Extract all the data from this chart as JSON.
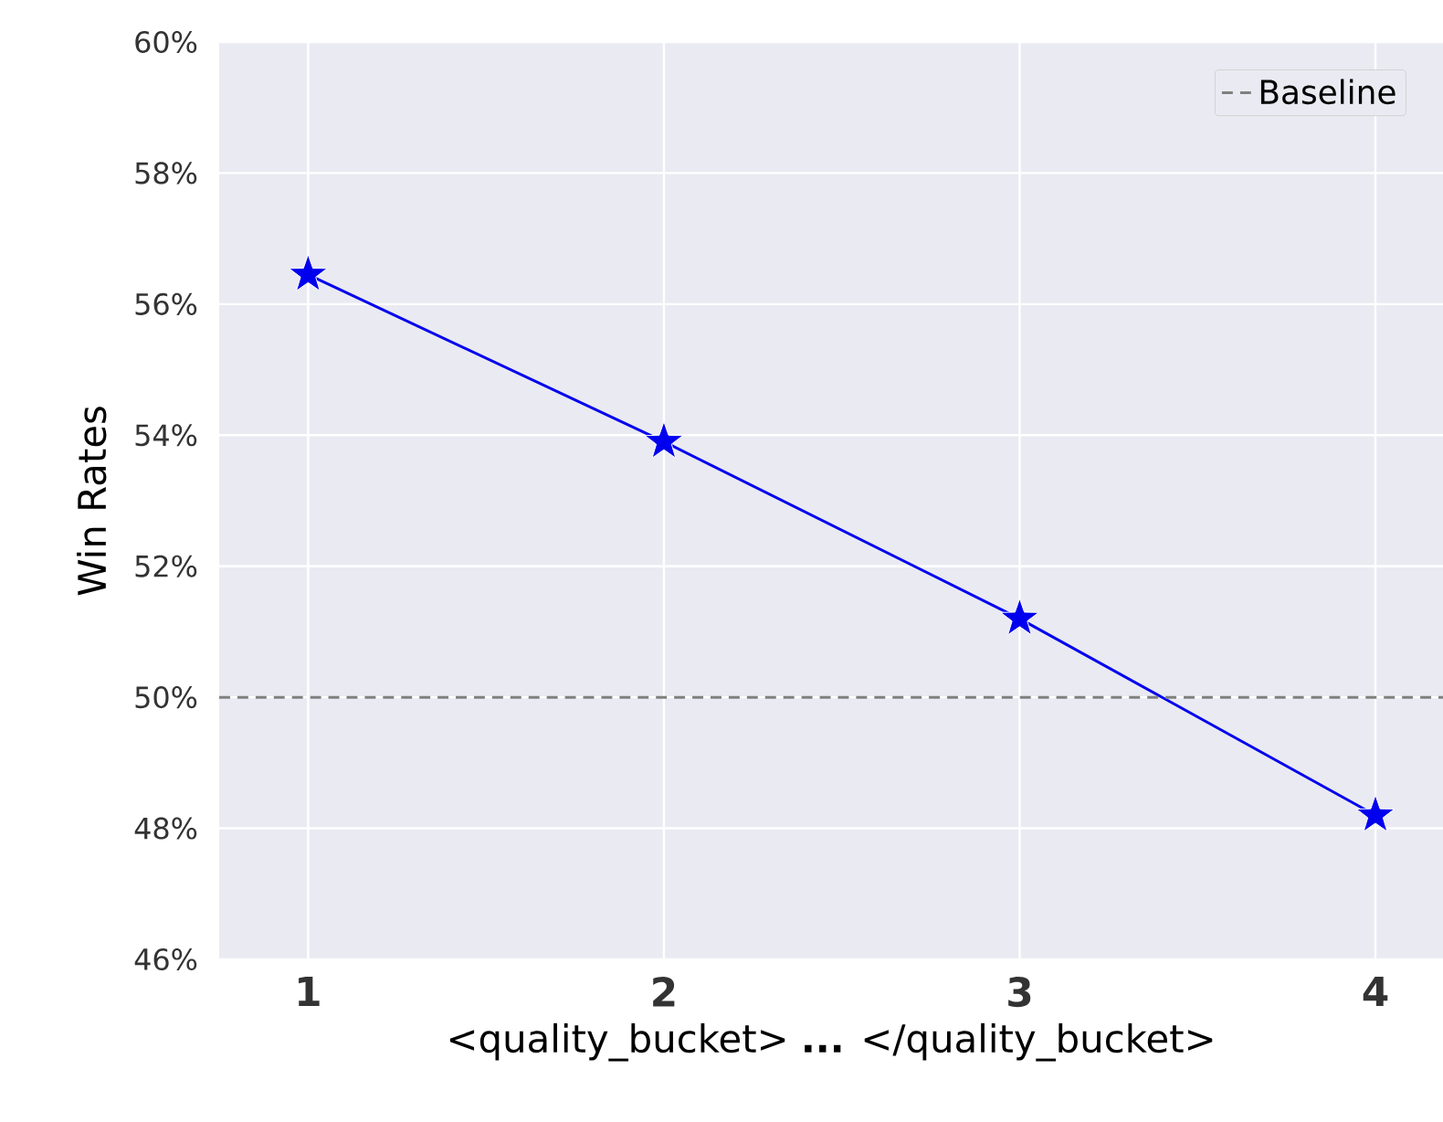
{
  "chart_data": {
    "type": "line",
    "xlabel": "<quality_bucket> **...** </quality_bucket>",
    "ylabel": "Win Rates",
    "x": [
      1,
      2,
      3,
      4
    ],
    "series": [
      {
        "color": "#0000ee",
        "values": [
          56.45,
          53.9,
          51.2,
          48.2
        ]
      }
    ],
    "xlim": [
      0.75,
      4.19
    ],
    "xticks": [
      {
        "value": 1,
        "label": "**1**"
      },
      {
        "value": 2,
        "label": "**2**"
      },
      {
        "value": 3,
        "label": "**3**"
      },
      {
        "value": 4,
        "label": "**4**"
      }
    ],
    "ylim": [
      46,
      60
    ],
    "yticks": [
      {
        "value": 46,
        "label": "46%"
      },
      {
        "value": 48,
        "label": "48%"
      },
      {
        "value": 50,
        "label": "50%"
      },
      {
        "value": 52,
        "label": "52%"
      },
      {
        "value": 54,
        "label": "54%"
      },
      {
        "value": 56,
        "label": "56%"
      },
      {
        "value": 58,
        "label": "58%"
      },
      {
        "value": 60,
        "label": "60%"
      }
    ],
    "ref_lines": [
      {
        "axis": "y",
        "value": 50,
        "label": "Baseline",
        "color": "#808080",
        "line_style": "dashed"
      }
    ],
    "grid": true,
    "legend": "top right",
    "marker": "star",
    "line_style": "solid"
  }
}
